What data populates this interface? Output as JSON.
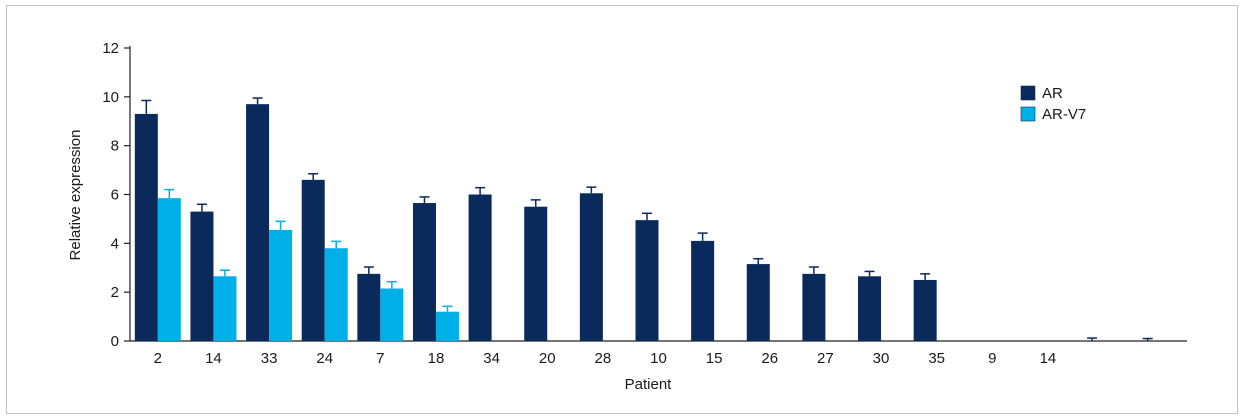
{
  "chart_data": {
    "type": "bar",
    "title": "",
    "xlabel": "Patient",
    "ylabel": "Relative expression",
    "ylim": [
      0,
      12
    ],
    "yticks": [
      0,
      2,
      4,
      6,
      8,
      10,
      12
    ],
    "grid": false,
    "legend_position": "top-right",
    "categories": [
      "2",
      "14",
      "33",
      "24",
      "7",
      "18",
      "34",
      "20",
      "28",
      "10",
      "15",
      "26",
      "27",
      "30",
      "35",
      "9",
      "14",
      "",
      ""
    ],
    "series": [
      {
        "name": "AR",
        "color": "#0a2a5c",
        "values": [
          9.3,
          5.3,
          9.7,
          6.6,
          2.75,
          5.65,
          6.0,
          5.5,
          6.05,
          4.95,
          4.1,
          3.15,
          2.75,
          2.65,
          2.5,
          null,
          null,
          0,
          0
        ],
        "errors": [
          0.55,
          0.3,
          0.25,
          0.25,
          0.28,
          0.25,
          0.28,
          0.28,
          0.25,
          0.28,
          0.32,
          0.22,
          0.28,
          0.2,
          0.25,
          null,
          null,
          0.12,
          0.1
        ]
      },
      {
        "name": "AR-V7",
        "color": "#00aee8",
        "values": [
          5.85,
          2.65,
          4.55,
          3.8,
          2.15,
          1.2,
          null,
          null,
          null,
          null,
          null,
          null,
          null,
          null,
          null,
          null,
          null,
          null,
          null
        ],
        "errors": [
          0.35,
          0.25,
          0.35,
          0.28,
          0.28,
          0.22,
          null,
          null,
          null,
          null,
          null,
          null,
          null,
          null,
          null,
          null,
          null,
          null,
          null
        ]
      }
    ]
  }
}
